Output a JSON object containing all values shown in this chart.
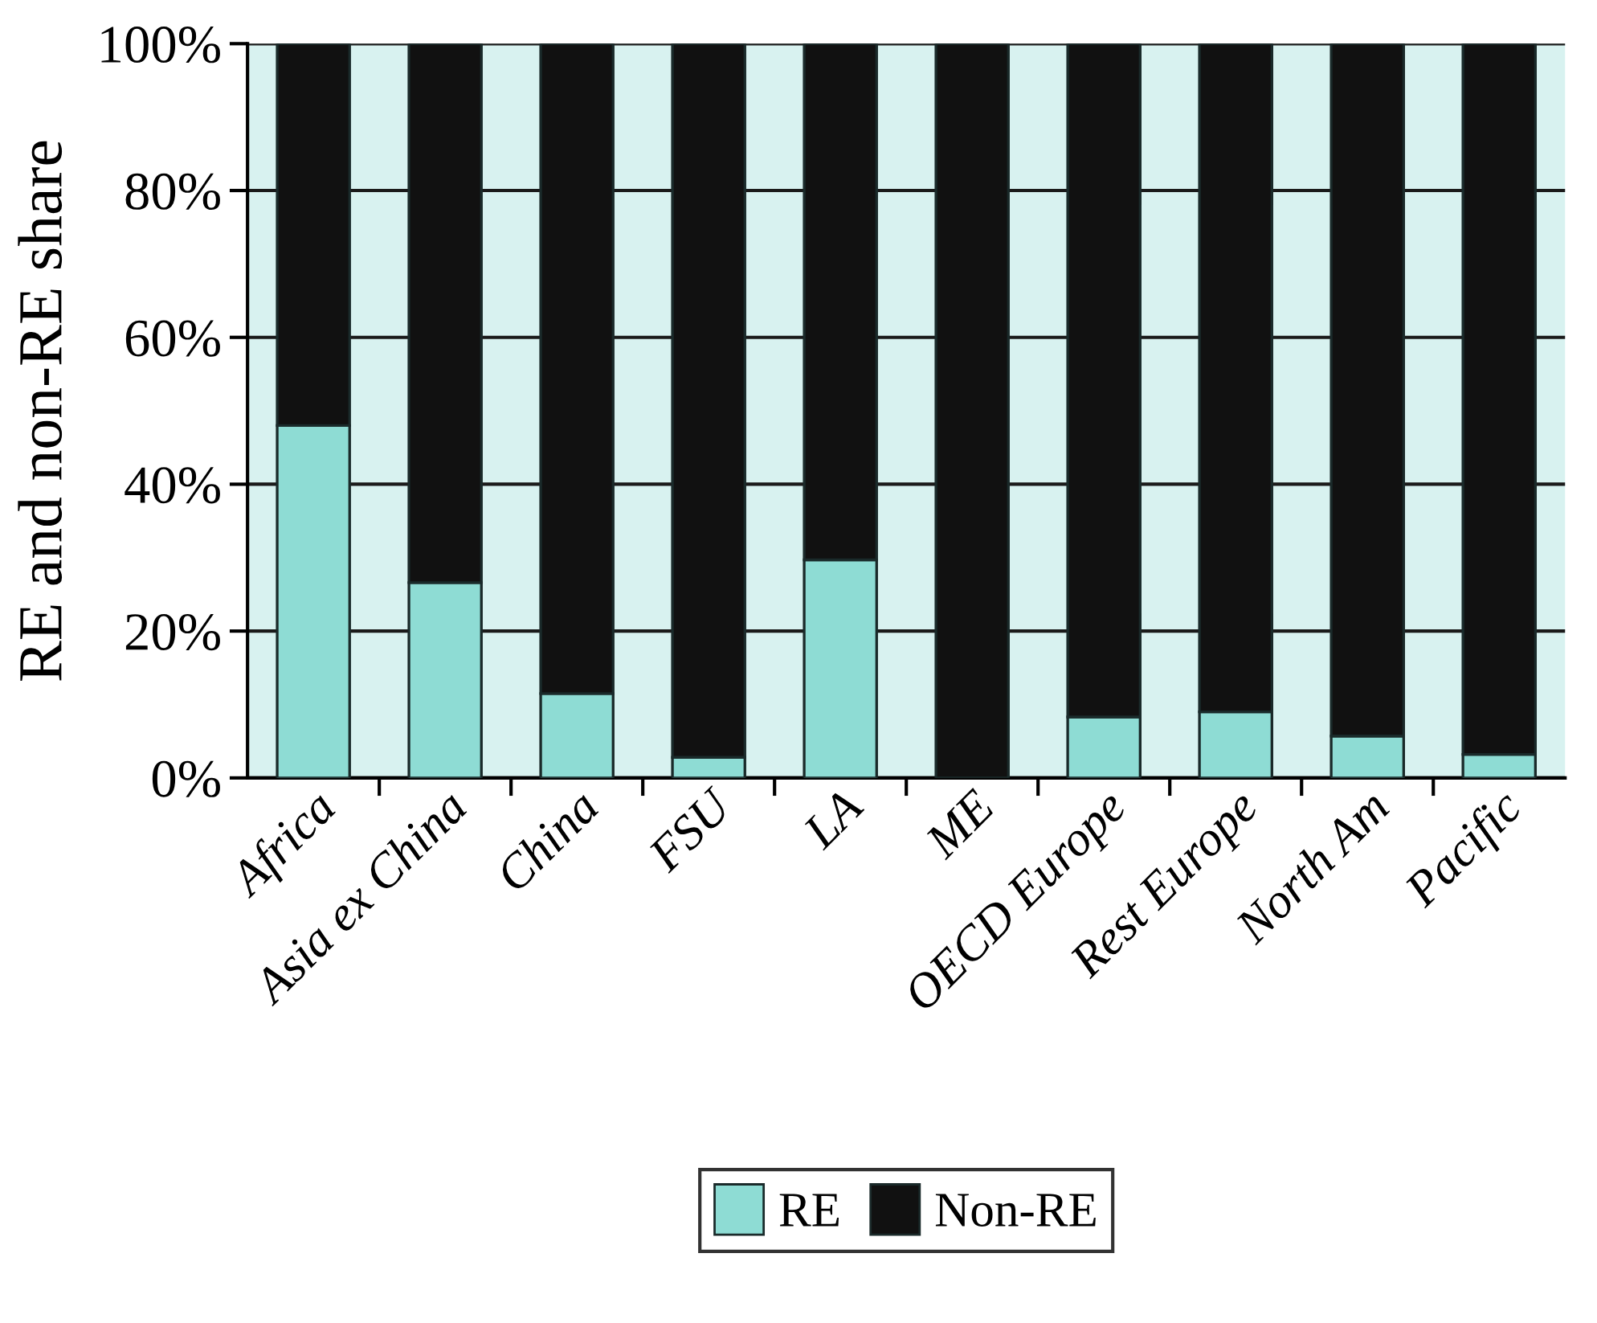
{
  "chart_data": {
    "type": "bar",
    "stacked": true,
    "ylabel": "RE and non-RE share",
    "categories": [
      "Africa",
      "Asia ex China",
      "China",
      "FSU",
      "LA",
      "ME",
      "OECD Europe",
      "Rest Europe",
      "North Am",
      "Pacific"
    ],
    "series": [
      {
        "name": "RE",
        "color": "#8edcd4",
        "values": [
          48.0,
          26.6,
          11.5,
          2.8,
          29.7,
          0,
          8.3,
          9.0,
          5.7,
          3.2
        ]
      },
      {
        "name": "Non-RE",
        "color": "#111111",
        "values": [
          52.0,
          73.4,
          88.5,
          97.2,
          70.3,
          100,
          91.7,
          91.0,
          94.3,
          96.8
        ]
      }
    ],
    "ylim": [
      0,
      100
    ],
    "yticks": [
      {
        "value": 0,
        "label": "0%"
      },
      {
        "value": 20,
        "label": "20%"
      },
      {
        "value": 40,
        "label": "40%"
      },
      {
        "value": 60,
        "label": "60%"
      },
      {
        "value": 80,
        "label": "80%"
      },
      {
        "value": 100,
        "label": "100%"
      }
    ],
    "grid": "y",
    "legend": "bottom"
  }
}
